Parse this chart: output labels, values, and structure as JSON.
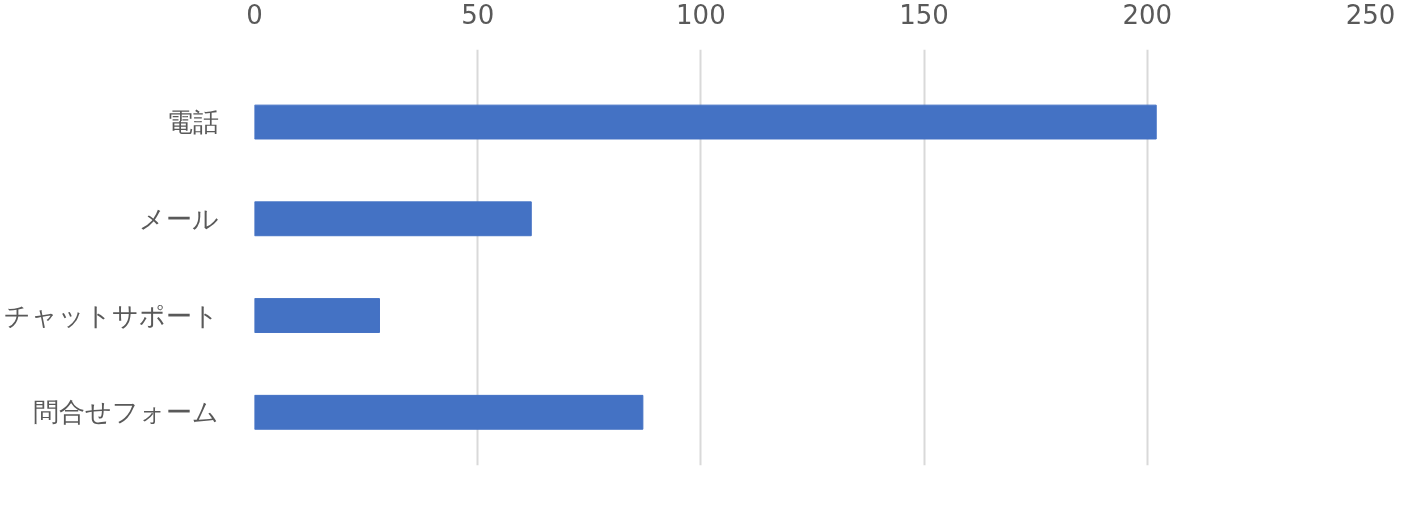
{
  "chart_data": {
    "type": "bar",
    "orientation": "horizontal",
    "categories": [
      "電話",
      "メール",
      "チャットサポート",
      "問合せフォーム"
    ],
    "values": [
      202,
      62,
      28,
      87
    ],
    "color": "#4472c4",
    "xlim": [
      0,
      250
    ],
    "xticks": [
      0,
      50,
      100,
      150,
      200,
      250
    ],
    "grid": "x"
  }
}
